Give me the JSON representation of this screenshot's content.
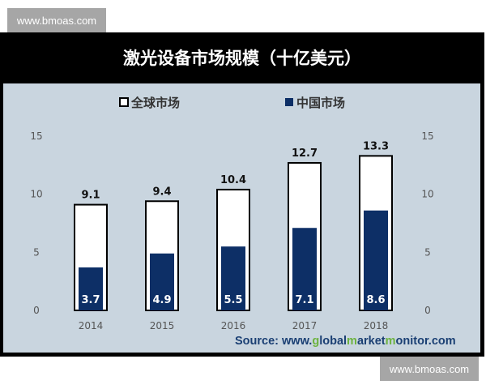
{
  "watermark": "www.bmoas.com",
  "chart_data": {
    "type": "bar",
    "title": "激光设备市场规模（十亿美元）",
    "categories": [
      "2014",
      "2015",
      "2016",
      "2017",
      "2018"
    ],
    "series": [
      {
        "name": "全球市场",
        "values": [
          9.1,
          9.4,
          10.4,
          12.7,
          13.3
        ],
        "color": "#ffffff",
        "stroke": "#000000"
      },
      {
        "name": "中国市场",
        "values": [
          3.7,
          4.9,
          5.5,
          7.1,
          8.6
        ],
        "color": "#0d2f66"
      }
    ],
    "yticks": [
      0,
      5,
      10,
      15
    ],
    "ylim": [
      0,
      15
    ],
    "legend_position": "top",
    "grid": false
  },
  "source": {
    "prefix": "Source: www.",
    "p1": "g",
    "p2": "lobal",
    "p3": "m",
    "p4": "arket",
    "p5": "m",
    "p6": "onitor.com"
  }
}
